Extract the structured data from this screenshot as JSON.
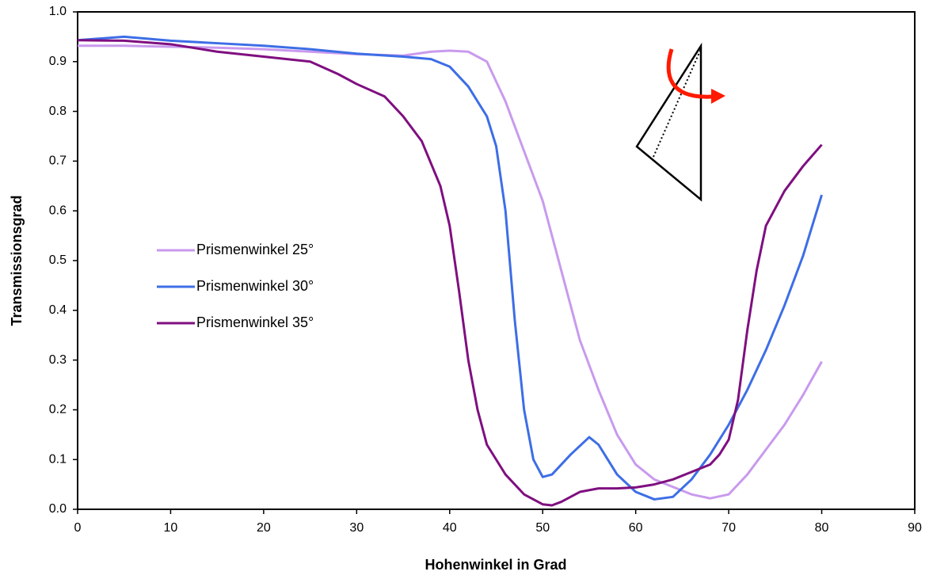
{
  "chart_data": {
    "type": "line",
    "xlabel": "Hohenwinkel in Grad",
    "ylabel": "Transmissionsgrad",
    "xlim": [
      0,
      90
    ],
    "xticks": [
      0,
      10,
      20,
      30,
      40,
      50,
      60,
      70,
      80,
      90
    ],
    "ylim": [
      0,
      1
    ],
    "yticks": [
      {
        "value": 0,
        "label": "0.0"
      },
      0.1,
      0.2,
      0.3,
      0.4,
      0.5,
      0.6,
      0.7,
      0.8,
      0.9,
      {
        "value": 1,
        "label": "1.0"
      }
    ],
    "legend": "center-left",
    "series": [
      {
        "name": "Prismenwinkel 25°",
        "color": "#c99aed",
        "x": [
          0,
          5,
          10,
          15,
          20,
          25,
          30,
          35,
          38,
          40,
          42,
          44,
          46,
          48,
          50,
          52,
          54,
          56,
          58,
          60,
          62,
          64,
          66,
          68,
          70,
          72,
          74,
          76,
          78,
          80
        ],
        "values": [
          0.932,
          0.932,
          0.93,
          0.928,
          0.925,
          0.92,
          0.915,
          0.912,
          0.92,
          0.922,
          0.92,
          0.9,
          0.82,
          0.72,
          0.62,
          0.48,
          0.34,
          0.24,
          0.15,
          0.09,
          0.06,
          0.045,
          0.03,
          0.022,
          0.03,
          0.07,
          0.12,
          0.17,
          0.23,
          0.297
        ]
      },
      {
        "name": "Prismenwinkel 30°",
        "color": "#3d6ee6",
        "x": [
          0,
          5,
          10,
          15,
          20,
          25,
          30,
          35,
          38,
          40,
          42,
          44,
          45,
          46,
          47,
          48,
          49,
          50,
          51,
          53,
          55,
          56,
          58,
          60,
          62,
          64,
          66,
          68,
          70,
          72,
          74,
          76,
          78,
          80
        ],
        "values": [
          0.943,
          0.95,
          0.942,
          0.937,
          0.932,
          0.925,
          0.916,
          0.91,
          0.905,
          0.89,
          0.85,
          0.79,
          0.73,
          0.6,
          0.38,
          0.2,
          0.1,
          0.065,
          0.07,
          0.11,
          0.145,
          0.13,
          0.07,
          0.035,
          0.02,
          0.025,
          0.06,
          0.11,
          0.17,
          0.24,
          0.32,
          0.41,
          0.51,
          0.632
        ]
      },
      {
        "name": "Prismenwinkel 35°",
        "color": "#7f0f80",
        "x": [
          0,
          5,
          10,
          15,
          20,
          25,
          28,
          30,
          33,
          35,
          37,
          39,
          40,
          41,
          42,
          43,
          44,
          46,
          48,
          50,
          51,
          52,
          54,
          56,
          58,
          60,
          62,
          64,
          66,
          68,
          69,
          70,
          71,
          72,
          73,
          74,
          76,
          78,
          80
        ],
        "values": [
          0.943,
          0.942,
          0.935,
          0.92,
          0.91,
          0.9,
          0.875,
          0.855,
          0.83,
          0.79,
          0.74,
          0.65,
          0.57,
          0.44,
          0.3,
          0.2,
          0.13,
          0.07,
          0.03,
          0.01,
          0.008,
          0.015,
          0.035,
          0.042,
          0.042,
          0.044,
          0.05,
          0.06,
          0.075,
          0.09,
          0.11,
          0.14,
          0.22,
          0.36,
          0.48,
          0.57,
          0.64,
          0.69,
          0.733
        ]
      }
    ]
  }
}
